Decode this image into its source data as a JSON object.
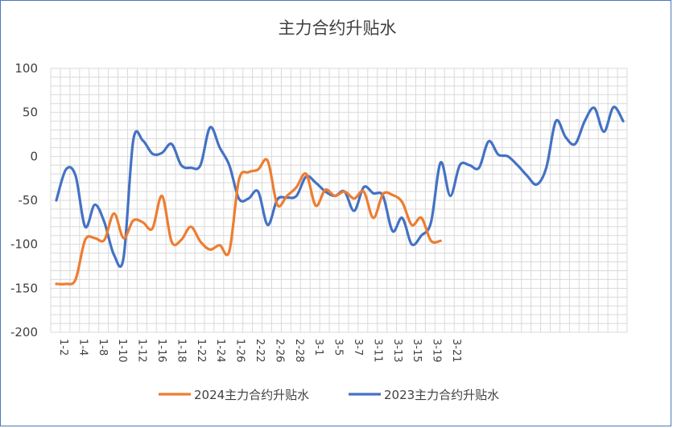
{
  "chart_data": {
    "type": "line",
    "title": "主力合约升贴水",
    "ylim": [
      -200,
      100
    ],
    "yticks": [
      100,
      50,
      0,
      -50,
      -100,
      -150,
      -200
    ],
    "x_labels": [
      "1-2",
      "1-4",
      "1-8",
      "1-10",
      "1-12",
      "1-16",
      "1-18",
      "1-22",
      "1-24",
      "1-26",
      "2-22",
      "2-26",
      "2-28",
      "3-1",
      "3-5",
      "3-7",
      "3-11",
      "3-13",
      "3-15",
      "3-19",
      "3-21"
    ],
    "grid": true,
    "legend_position": "bottom",
    "series": [
      {
        "name": "2024主力合约升贴水",
        "color": "#ed7d31",
        "values": [
          -145,
          -145,
          -140,
          -95,
          -93,
          -95,
          -65,
          -93,
          -73,
          -75,
          -82,
          -45,
          -97,
          -95,
          -80,
          -97,
          -106,
          -101,
          -108,
          -27,
          -18,
          -15,
          -5,
          -55,
          -45,
          -35,
          -20,
          -56,
          -38,
          -45,
          -40,
          -48,
          -40,
          -70,
          -43,
          -44,
          -52,
          -78,
          -70,
          -96,
          -96
        ]
      },
      {
        "name": "2023主力合约升贴水",
        "color": "#4472c4",
        "values": [
          -50,
          -15,
          -22,
          -80,
          -55,
          -75,
          -112,
          -115,
          18,
          18,
          3,
          4,
          14,
          -10,
          -13,
          -10,
          33,
          10,
          -10,
          -48,
          -48,
          -40,
          -78,
          -49,
          -47,
          -45,
          -23,
          -30,
          -40,
          -45,
          -40,
          -62,
          -35,
          -42,
          -45,
          -85,
          -70,
          -100,
          -90,
          -75,
          -7,
          -45,
          -10,
          -10,
          -13,
          17,
          2,
          0,
          -10,
          -22,
          -32,
          -13,
          40,
          22,
          14,
          40,
          55,
          28,
          56,
          40
        ]
      }
    ]
  }
}
